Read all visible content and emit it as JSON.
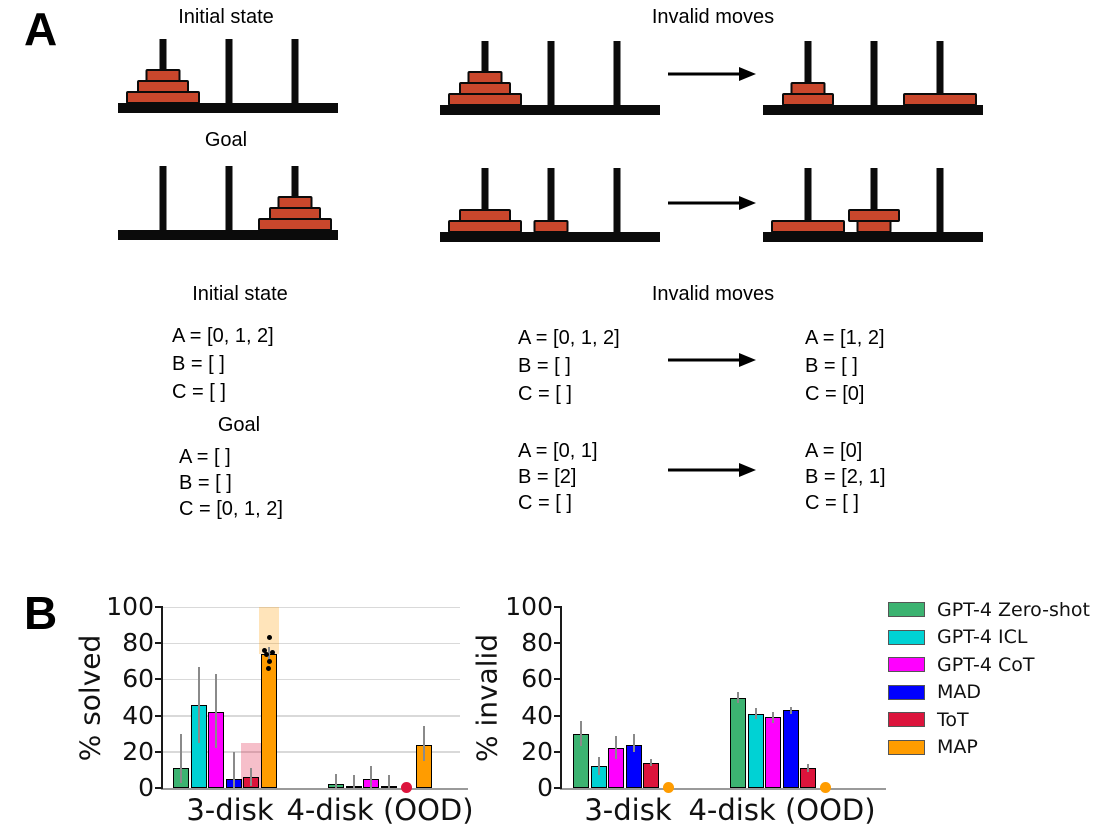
{
  "panel_a": {
    "label": "A",
    "disk_color": "#C9472C",
    "diagram_headings": {
      "initial": "Initial state",
      "goal": "Goal",
      "invalid": "Invalid moves"
    },
    "text_headings": {
      "initial": "Initial state",
      "goal": "Goal",
      "invalid": "Invalid moves"
    },
    "towers": {
      "initial": [
        [
          "L",
          "M",
          "S"
        ],
        [],
        []
      ],
      "goal": [
        [],
        [],
        [
          "L",
          "M",
          "S"
        ]
      ],
      "invalid1_before": [
        [
          "L",
          "M",
          "S"
        ],
        [],
        []
      ],
      "invalid1_after": [
        [
          "M",
          "S"
        ],
        [],
        [
          "L"
        ]
      ],
      "invalid2_before": [
        [
          "L",
          "M"
        ],
        [
          "S"
        ],
        []
      ],
      "invalid2_after": [
        [
          "L"
        ],
        [
          "S",
          "M"
        ],
        []
      ]
    },
    "states": {
      "initial": [
        "A = [0, 1, 2]",
        "B = [ ]",
        "C = [ ]"
      ],
      "goal": [
        "A = [ ]",
        "B = [ ]",
        "C = [0, 1, 2]"
      ],
      "move1_before": [
        "A = [0, 1, 2]",
        "B = [ ]",
        "C = [ ]"
      ],
      "move1_after": [
        "A = [1, 2]",
        "B = [ ]",
        "C = [0]"
      ],
      "move2_before": [
        "A = [0, 1]",
        "B = [2]",
        "C = [ ]"
      ],
      "move2_after": [
        "A = [0]",
        "B = [2, 1]",
        "C = [ ]"
      ]
    }
  },
  "panel_b": {
    "label": "B",
    "legend": [
      {
        "label": "GPT-4 Zero-shot",
        "color": "#3CB371"
      },
      {
        "label": "GPT-4 ICL",
        "color": "#00D2D4"
      },
      {
        "label": "GPT-4 CoT",
        "color": "#FF00FF"
      },
      {
        "label": "MAD",
        "color": "#0000FF"
      },
      {
        "label": "ToT",
        "color": "#DC143C"
      },
      {
        "label": "MAP",
        "color": "#FF9C00"
      }
    ]
  },
  "chart_data": [
    {
      "type": "bar",
      "title": "",
      "ylabel": "% solved",
      "xlabel": "",
      "categories": [
        "3-disk",
        "4-disk (OOD)"
      ],
      "ylim": [
        0,
        100
      ],
      "yticks": [
        0,
        20,
        40,
        60,
        80,
        100
      ],
      "grid": true,
      "legend_position": "outside-right",
      "series": [
        {
          "name": "GPT-4 Zero-shot",
          "color": "#3CB371",
          "values": [
            11,
            2
          ],
          "err_lo": [
            3,
            0
          ],
          "err_hi": [
            30,
            8
          ]
        },
        {
          "name": "GPT-4 ICL",
          "color": "#00D2D4",
          "values": [
            46,
            1
          ],
          "err_lo": [
            25,
            0
          ],
          "err_hi": [
            67,
            7
          ]
        },
        {
          "name": "GPT-4 CoT",
          "color": "#FF00FF",
          "values": [
            42,
            5
          ],
          "err_lo": [
            22,
            0
          ],
          "err_hi": [
            63,
            12
          ]
        },
        {
          "name": "MAD",
          "color": "#0000FF",
          "values": [
            5,
            1
          ],
          "err_lo": [
            0,
            0
          ],
          "err_hi": [
            20,
            7
          ]
        },
        {
          "name": "ToT",
          "color": "#DC143C",
          "values": [
            6,
            0
          ],
          "err_lo": [
            1,
            null
          ],
          "err_hi": [
            11,
            null
          ],
          "zero_dot_groups": [
            1
          ],
          "shades": [
            {
              "group": 0,
              "from": 0,
              "to": 25
            }
          ]
        },
        {
          "name": "MAP",
          "color": "#FF9C00",
          "values": [
            74,
            24
          ],
          "err_lo": [
            71,
            15
          ],
          "err_hi": [
            78,
            34
          ],
          "shades": [
            {
              "group": 0,
              "from": 74,
              "to": 100
            }
          ],
          "dots": [
            {
              "group": 0,
              "values": [
                83,
                76,
                75,
                74,
                70,
                66
              ]
            }
          ]
        }
      ]
    },
    {
      "type": "bar",
      "title": "",
      "ylabel": "% invalid",
      "xlabel": "",
      "categories": [
        "3-disk",
        "4-disk (OOD)"
      ],
      "ylim": [
        0,
        100
      ],
      "yticks": [
        0,
        20,
        40,
        60,
        80,
        100
      ],
      "grid": false,
      "legend_position": "outside-right",
      "series": [
        {
          "name": "GPT-4 Zero-shot",
          "color": "#3CB371",
          "values": [
            30,
            50
          ],
          "err_lo": [
            23,
            47
          ],
          "err_hi": [
            37,
            53
          ]
        },
        {
          "name": "GPT-4 ICL",
          "color": "#00D2D4",
          "values": [
            12,
            41
          ],
          "err_lo": [
            7,
            38
          ],
          "err_hi": [
            17,
            44
          ]
        },
        {
          "name": "GPT-4 CoT",
          "color": "#FF00FF",
          "values": [
            22,
            39
          ],
          "err_lo": [
            16,
            36
          ],
          "err_hi": [
            29,
            42
          ]
        },
        {
          "name": "MAD",
          "color": "#0000FF",
          "values": [
            24,
            43
          ],
          "err_lo": [
            20,
            41
          ],
          "err_hi": [
            30,
            45
          ]
        },
        {
          "name": "ToT",
          "color": "#DC143C",
          "values": [
            14,
            11
          ],
          "err_lo": [
            12,
            9
          ],
          "err_hi": [
            16,
            13
          ]
        },
        {
          "name": "MAP",
          "color": "#FF9C00",
          "values": [
            0,
            0
          ],
          "err_lo": [
            null,
            null
          ],
          "err_hi": [
            null,
            null
          ],
          "zero_dot_groups": [
            0,
            1
          ]
        }
      ]
    }
  ]
}
